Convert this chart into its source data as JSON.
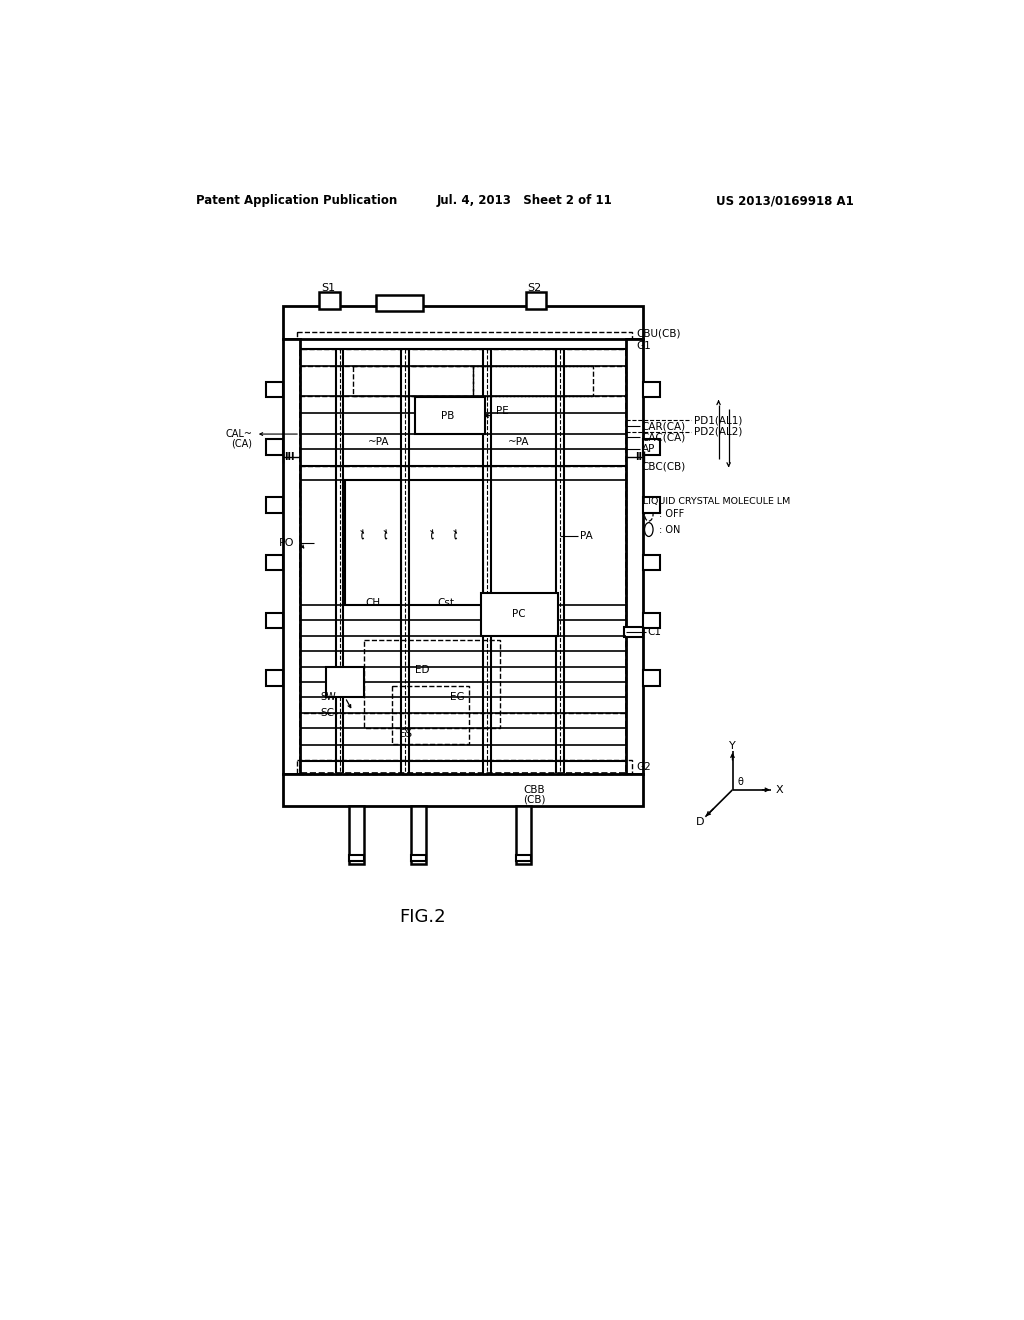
{
  "header_left": "Patent Application Publication",
  "header_center": "Jul. 4, 2013   Sheet 2 of 11",
  "header_right": "US 2013/0169918 A1",
  "fig_label": "FIG.2",
  "bg_color": "#ffffff",
  "text_color": "#000000"
}
